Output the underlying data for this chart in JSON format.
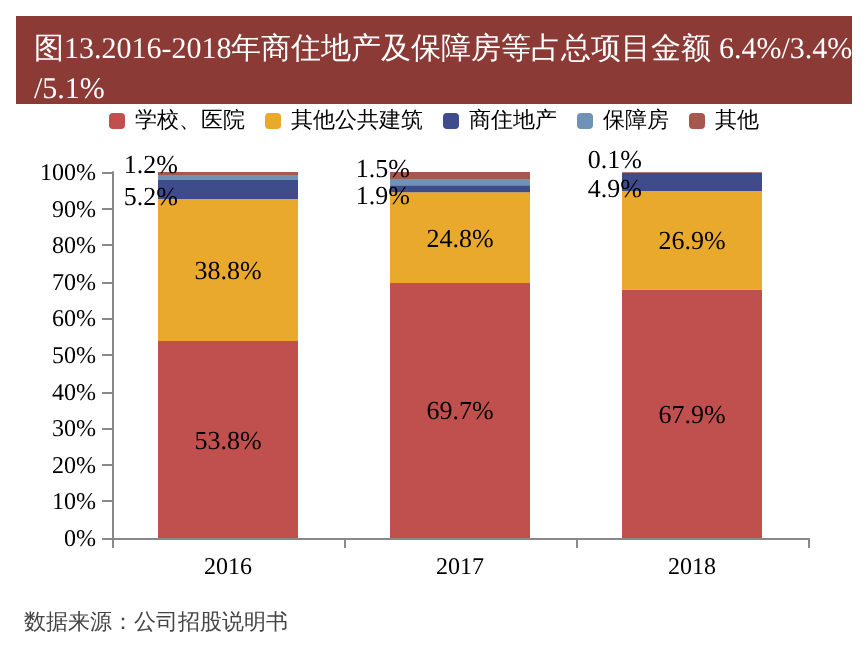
{
  "chart_data": {
    "type": "bar",
    "stacked": true,
    "title": "图13.2016-2018年商住地产及保障房等占总项目金额 6.4%/3.4%/5.1%",
    "annotations": [
      "数据来源：公司招股说明书"
    ],
    "categories": [
      "2016",
      "2017",
      "2018"
    ],
    "series": [
      {
        "name": "学校、医院",
        "color": "#c0504d",
        "values": [
          53.8,
          69.7,
          67.9
        ],
        "value_labels": [
          "53.8%",
          "69.7%",
          "67.9%"
        ]
      },
      {
        "name": "其他公共建筑",
        "color": "#e8a92c",
        "values": [
          38.8,
          24.8,
          26.9
        ],
        "value_labels": [
          "38.8%",
          "24.8%",
          "26.9%"
        ]
      },
      {
        "name": "商住地产",
        "color": "#3f4c8c",
        "values": [
          5.2,
          1.9,
          4.9
        ],
        "value_labels": [
          "5.2%",
          "1.9%",
          "4.9%"
        ]
      },
      {
        "name": "保障房",
        "color": "#6e93b5",
        "values": [
          1.2,
          1.5,
          0.1
        ],
        "value_labels": [
          "1.2%",
          "1.5%",
          "0.1%"
        ]
      },
      {
        "name": "其他",
        "color": "#a5584c",
        "values": [
          1.0,
          2.1,
          0.2
        ]
      }
    ],
    "ylim": [
      0,
      100
    ],
    "yticks": [
      {
        "value": 0,
        "label": "0%"
      },
      {
        "value": 10,
        "label": "10%"
      },
      {
        "value": 20,
        "label": "20%"
      },
      {
        "value": 30,
        "label": "30%"
      },
      {
        "value": 40,
        "label": "40%"
      },
      {
        "value": 50,
        "label": "50%"
      },
      {
        "value": 60,
        "label": "60%"
      },
      {
        "value": 70,
        "label": "70%"
      },
      {
        "value": 80,
        "label": "80%"
      },
      {
        "value": 90,
        "label": "90%"
      },
      {
        "value": 100,
        "label": "100%"
      }
    ],
    "grid": false,
    "legend": "top"
  }
}
